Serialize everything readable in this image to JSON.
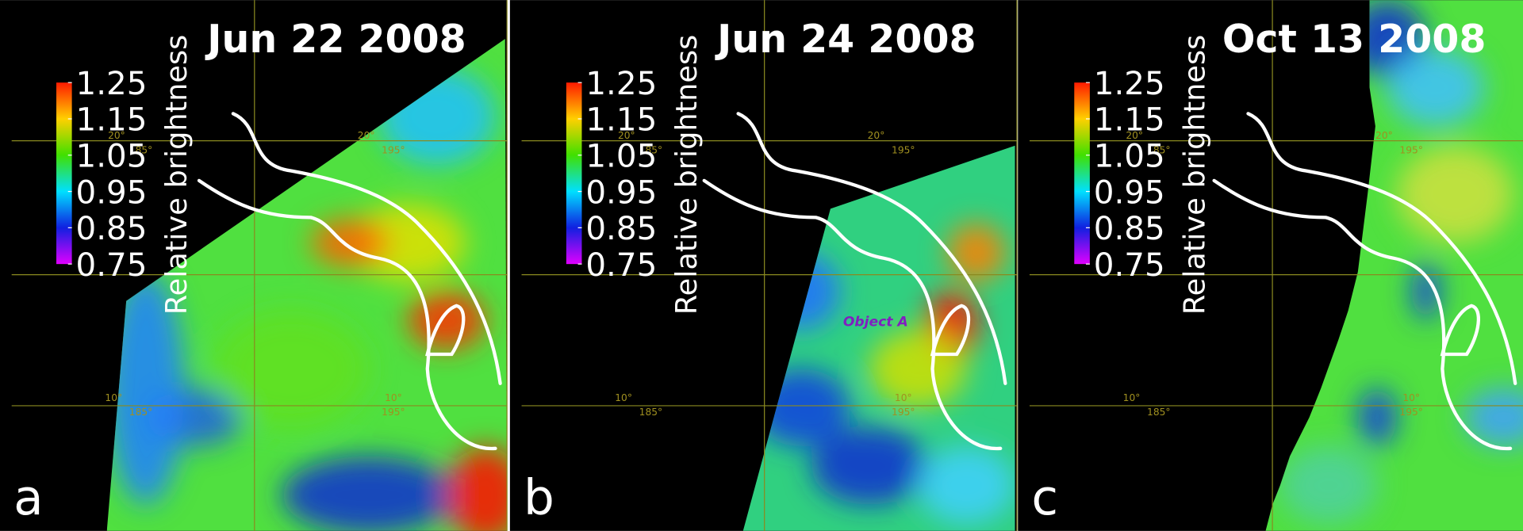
{
  "panels": [
    {
      "label": "a",
      "date": "Jun 22 2008",
      "colorbar": {
        "title": "Relative brightness",
        "ticks": [
          1.25,
          1.15,
          1.05,
          0.95,
          0.85,
          0.75
        ]
      },
      "grid_labels": [
        "20°",
        "185°",
        "20°",
        "195°",
        "10°",
        "185°",
        "10°",
        "195°"
      ]
    },
    {
      "label": "b",
      "date": "Jun 24 2008",
      "colorbar": {
        "title": "Relative brightness",
        "ticks": [
          1.25,
          1.15,
          1.05,
          0.95,
          0.85,
          0.75
        ]
      },
      "grid_labels": [
        "20°",
        "185°",
        "20°",
        "195°",
        "10°",
        "185°",
        "10°",
        "195°"
      ],
      "annotation": "Object A"
    },
    {
      "label": "c",
      "date": "Oct 13 2008",
      "colorbar": {
        "title": "Relative brightness",
        "ticks": [
          1.25,
          1.15,
          1.05,
          0.95,
          0.85,
          0.75
        ]
      },
      "grid_labels": [
        "20°",
        "185°",
        "20°",
        "195°",
        "10°",
        "185°",
        "10°",
        "195°"
      ]
    }
  ]
}
